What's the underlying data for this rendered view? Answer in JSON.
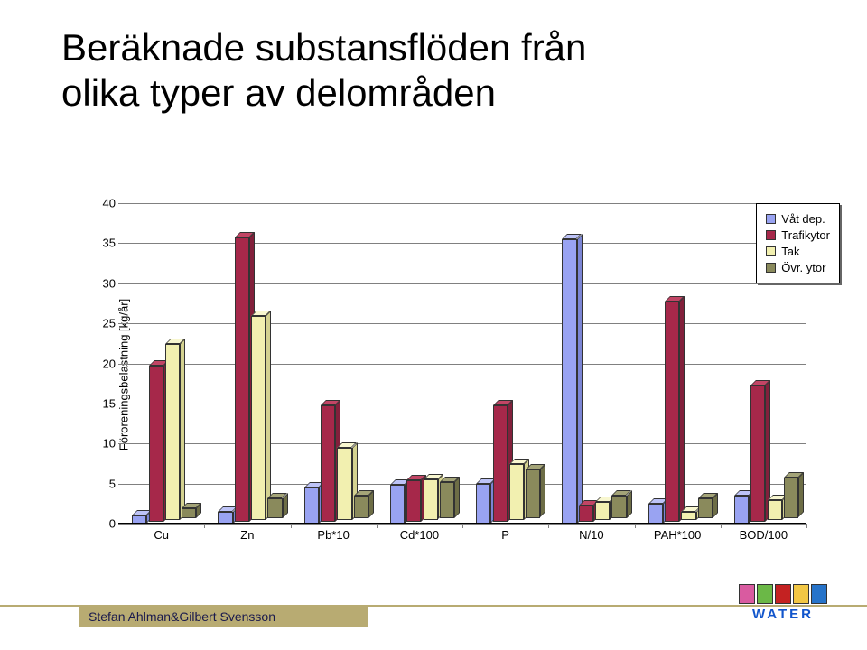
{
  "title_line1": "Beräknade substansflöden från",
  "title_line2": "olika typer av delområden",
  "y_axis_title": "Föroreningsbelastning [kg/år]",
  "chart": {
    "type": "bar",
    "ylim": [
      0,
      40
    ],
    "yticks": [
      0,
      5,
      10,
      15,
      20,
      25,
      30,
      35,
      40
    ],
    "grid_color": "#808080",
    "background_color": "#ffffff",
    "y_label_fontsize": 13,
    "x_label_fontsize": 13,
    "bar_depth": 6,
    "categories": [
      "Cu",
      "Zn",
      "Pb*10",
      "Cd*100",
      "P",
      "N/10",
      "PAH*100",
      "BOD/100"
    ],
    "series": [
      {
        "name": "Våt dep.",
        "color": "#99a3f2",
        "side": "#7b85d4",
        "top": "#bdc3f7"
      },
      {
        "name": "Trafikytor",
        "color": "#a6284a",
        "side": "#82203b",
        "top": "#c24565"
      },
      {
        "name": "Tak",
        "color": "#f2f0b0",
        "side": "#d4d290",
        "top": "#f8f7d0"
      },
      {
        "name": "Övr. ytor",
        "color": "#8a8a5c",
        "side": "#6d6d46",
        "top": "#a4a478"
      }
    ],
    "values": [
      [
        1.0,
        19.5,
        22.0,
        1.2
      ],
      [
        1.5,
        35.5,
        25.5,
        2.5
      ],
      [
        4.5,
        14.5,
        9.0,
        2.8
      ],
      [
        4.8,
        5.2,
        5.0,
        4.5
      ],
      [
        5.0,
        14.5,
        7.0,
        6.0
      ],
      [
        35.5,
        2.0,
        2.2,
        2.8
      ],
      [
        2.5,
        27.5,
        1.0,
        2.5
      ],
      [
        3.5,
        17.0,
        2.5,
        5.0
      ]
    ]
  },
  "legend_labels": [
    "Våt dep.",
    "Trafikytor",
    "Tak",
    "Övr. ytor"
  ],
  "footer_text": "Stefan Ahlman&Gilbert Svensson",
  "footer_bar_color": "#b8ab72",
  "logo": {
    "text": "WATER",
    "squares": [
      "#d95ba0",
      "#6bb847",
      "#c42222",
      "#f2c744",
      "#2673c9"
    ]
  }
}
